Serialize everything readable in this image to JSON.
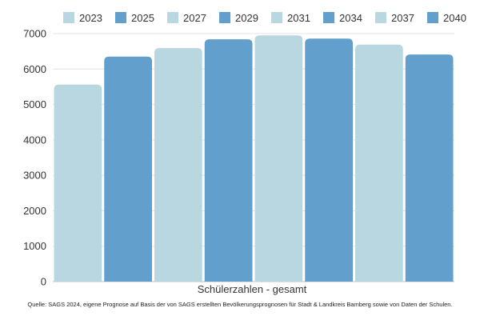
{
  "chart_data": {
    "type": "bar",
    "categories": [
      "Schülerzahlen - gesamt"
    ],
    "xlabel": "Schülerzahlen - gesamt",
    "ylabel": "",
    "ylim": [
      0,
      7000
    ],
    "yticks": [
      0,
      1000,
      2000,
      3000,
      4000,
      5000,
      6000,
      7000
    ],
    "grid": true,
    "legend_position": "top",
    "series": [
      {
        "name": "2023",
        "values": [
          5560
        ],
        "color": "#b9d7e0"
      },
      {
        "name": "2025",
        "values": [
          6350
        ],
        "color": "#629fcc"
      },
      {
        "name": "2027",
        "values": [
          6590
        ],
        "color": "#b9d7e0"
      },
      {
        "name": "2029",
        "values": [
          6840
        ],
        "color": "#629fcc"
      },
      {
        "name": "2031",
        "values": [
          6950
        ],
        "color": "#b9d7e0"
      },
      {
        "name": "2034",
        "values": [
          6860
        ],
        "color": "#629fcc"
      },
      {
        "name": "2037",
        "values": [
          6690
        ],
        "color": "#b9d7e0"
      },
      {
        "name": "2040",
        "values": [
          6410
        ],
        "color": "#629fcc"
      }
    ]
  },
  "source_note": "Quelle: SAGS 2024, eigene Prognose auf Basis der von SAGS erstellten Bevölkerungsprognosen für Stadt & Landkreis Bamberg sowie von Daten der Schulen."
}
